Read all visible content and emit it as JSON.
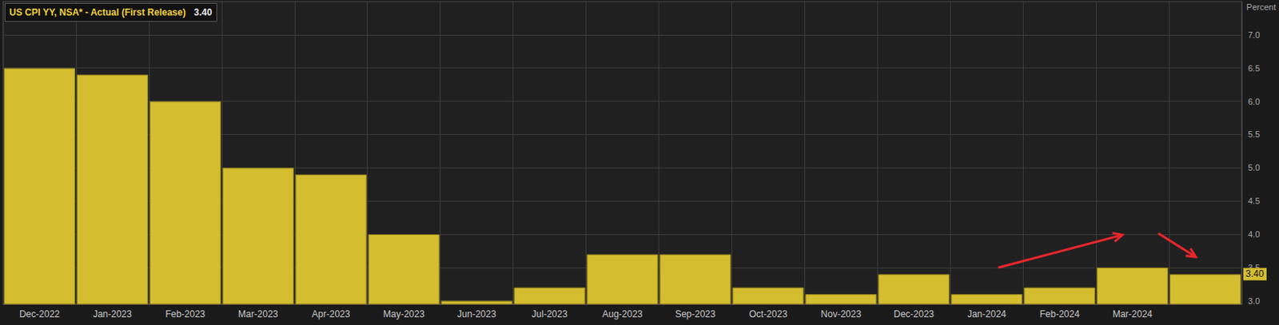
{
  "chart_data": {
    "type": "bar",
    "title": "US CPI YY, NSA* - Actual (First Release)",
    "subtitle": "3.40",
    "ylabel": "Percent",
    "categories": [
      "Dec-2022",
      "Jan-2023",
      "Feb-2023",
      "Mar-2023",
      "Apr-2023",
      "May-2023",
      "Jun-2023",
      "Jul-2023",
      "Aug-2023",
      "Sep-2023",
      "Oct-2023",
      "Nov-2023",
      "Dec-2023",
      "Jan-2024",
      "Feb-2024",
      "Mar-2024",
      null
    ],
    "values": [
      6.5,
      6.4,
      6.0,
      5.0,
      4.9,
      4.0,
      3.0,
      3.2,
      3.7,
      3.7,
      3.2,
      3.1,
      3.4,
      3.1,
      3.2,
      3.5,
      3.4
    ],
    "color": "#d4bd2f",
    "ylim": [
      2.95,
      7.5
    ],
    "yticks": [
      {
        "value": 3,
        "label": "3.0"
      },
      {
        "value": 3.5,
        "label": "3.5"
      },
      {
        "value": 4,
        "label": "4.0"
      },
      {
        "value": 4.5,
        "label": "4.5"
      },
      {
        "value": 5,
        "label": "5.0"
      },
      {
        "value": 5.5,
        "label": "5.5"
      },
      {
        "value": 6,
        "label": "6.0"
      },
      {
        "value": 6.5,
        "label": "6.5"
      },
      {
        "value": 7,
        "label": "7.0"
      }
    ],
    "grid": true
  }
}
